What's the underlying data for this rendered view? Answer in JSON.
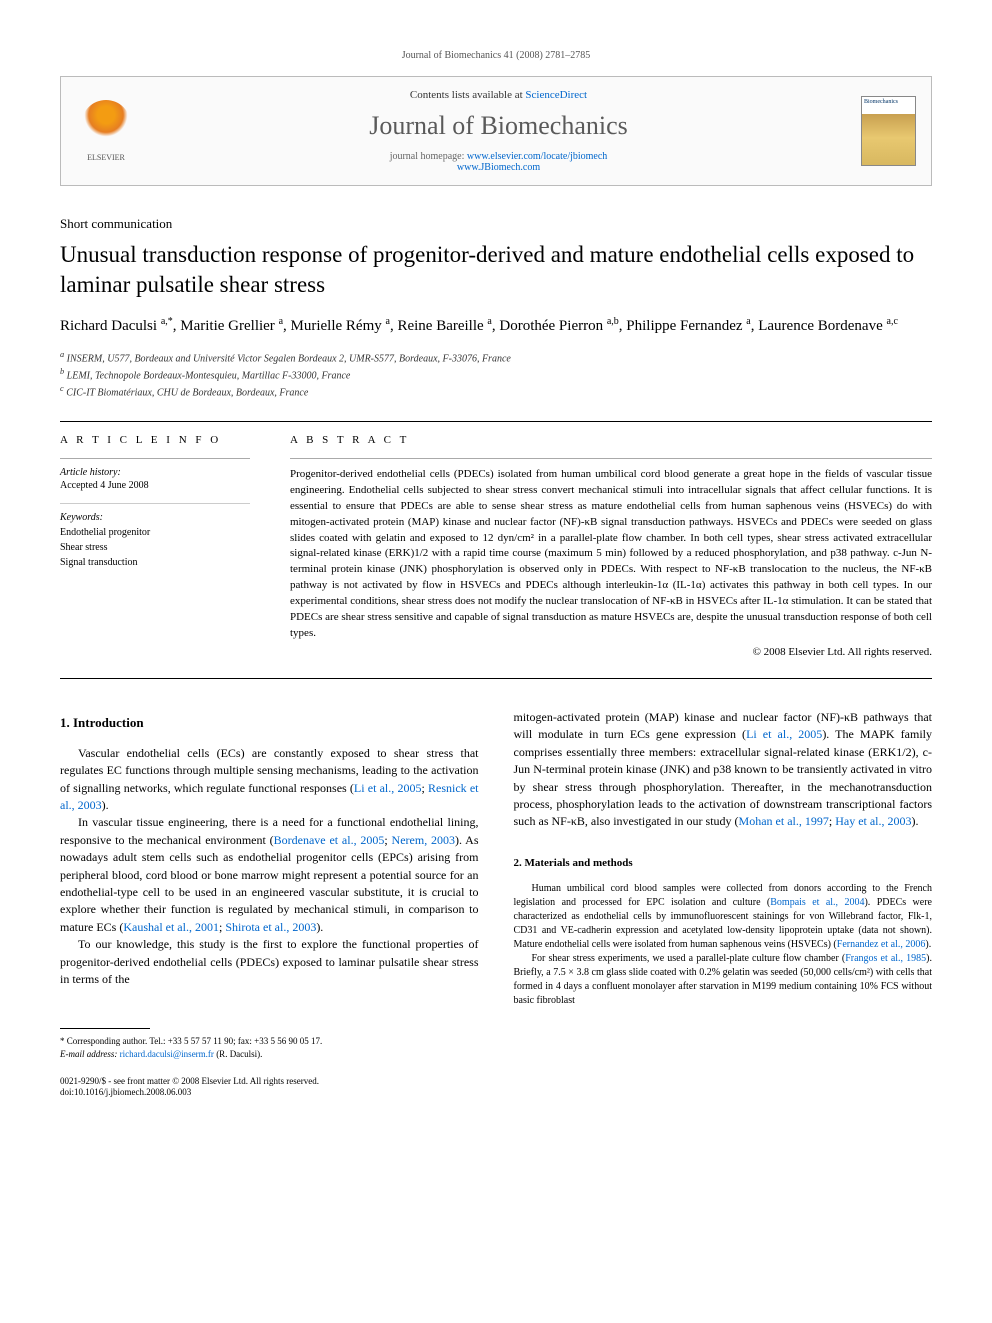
{
  "header": {
    "citation": "Journal of Biomechanics 41 (2008) 2781–2785",
    "contents_prefix": "Contents lists available at ",
    "contents_link": "ScienceDirect",
    "journal_name": "Journal of Biomechanics",
    "homepage_prefix": "journal homepage: ",
    "homepage_link1": "www.elsevier.com/locate/jbiomech",
    "homepage_link2": "www.JBiomech.com",
    "elsevier_label": "ELSEVIER",
    "cover_label": "Biomechanics"
  },
  "article": {
    "type": "Short communication",
    "title": "Unusual transduction response of progenitor-derived and mature endothelial cells exposed to laminar pulsatile shear stress",
    "authors_html": "Richard Daculsi <span class='sup'>a,*</span>, Maritie Grellier <span class='sup'>a</span>, Murielle Rémy <span class='sup'>a</span>, Reine Bareille <span class='sup'>a</span>, Dorothée Pierron <span class='sup'>a,b</span>, Philippe Fernandez <span class='sup'>a</span>, Laurence Bordenave <span class='sup'>a,c</span>",
    "affiliations": [
      "a INSERM, U577, Bordeaux and Université Victor Segalen Bordeaux 2, UMR-S577, Bordeaux, F-33076, France",
      "b LEMI, Technopole Bordeaux-Montesquieu, Martillac F-33000, France",
      "c CIC-IT Biomatériaux, CHU de Bordeaux, Bordeaux, France"
    ]
  },
  "info": {
    "heading": "A R T I C L E   I N F O",
    "history_label": "Article history:",
    "history_text": "Accepted 4 June 2008",
    "keywords_label": "Keywords:",
    "keywords": [
      "Endothelial progenitor",
      "Shear stress",
      "Signal transduction"
    ]
  },
  "abstract": {
    "heading": "A B S T R A C T",
    "text": "Progenitor-derived endothelial cells (PDECs) isolated from human umbilical cord blood generate a great hope in the fields of vascular tissue engineering. Endothelial cells subjected to shear stress convert mechanical stimuli into intracellular signals that affect cellular functions. It is essential to ensure that PDECs are able to sense shear stress as mature endothelial cells from human saphenous veins (HSVECs) do with mitogen-activated protein (MAP) kinase and nuclear factor (NF)-κB signal transduction pathways. HSVECs and PDECs were seeded on glass slides coated with gelatin and exposed to 12 dyn/cm² in a parallel-plate flow chamber. In both cell types, shear stress activated extracellular signal-related kinase (ERK)1/2 with a rapid time course (maximum 5 min) followed by a reduced phosphorylation, and p38 pathway. c-Jun N-terminal protein kinase (JNK) phosphorylation is observed only in PDECs. With respect to NF-κB translocation to the nucleus, the NF-κB pathway is not activated by flow in HSVECs and PDECs although interleukin-1α (IL-1α) activates this pathway in both cell types. In our experimental conditions, shear stress does not modify the nuclear translocation of NF-κB in HSVECs after IL-1α stimulation. It can be stated that PDECs are shear stress sensitive and capable of signal transduction as mature HSVECs are, despite the unusual transduction response of both cell types.",
    "copyright": "© 2008 Elsevier Ltd. All rights reserved."
  },
  "body": {
    "intro_heading": "1.  Introduction",
    "intro_p1": "Vascular endothelial cells (ECs) are constantly exposed to shear stress that regulates EC functions through multiple sensing mechanisms, leading to the activation of signalling networks, which regulate functional responses (",
    "intro_p1_ref1": "Li et al., 2005",
    "intro_p1_mid": "; ",
    "intro_p1_ref2": "Resnick et al., 2003",
    "intro_p1_end": ").",
    "intro_p2_a": "In vascular tissue engineering, there is a need for a functional endothelial lining, responsive to the mechanical environment (",
    "intro_p2_ref1": "Bordenave et al., 2005",
    "intro_p2_b": "; ",
    "intro_p2_ref2": "Nerem, 2003",
    "intro_p2_c": "). As nowadays adult stem cells such as endothelial progenitor cells (EPCs) arising from peripheral blood, cord blood or bone marrow might represent a potential source for an endothelial-type cell to be used in an engineered vascular substitute, it is crucial to explore whether their function is regulated by mechanical stimuli, in comparison to mature ECs (",
    "intro_p2_ref3": "Kaushal et al., 2001",
    "intro_p2_d": "; ",
    "intro_p2_ref4": "Shirota et al., 2003",
    "intro_p2_e": ").",
    "intro_p3": "To our knowledge, this study is the first to explore the functional properties of progenitor-derived endothelial cells (PDECs) exposed to laminar pulsatile shear stress in terms of the",
    "col2_p1_a": "mitogen-activated protein (MAP) kinase and nuclear factor (NF)-κB pathways that will modulate in turn ECs gene expression (",
    "col2_p1_ref1": "Li et al., 2005",
    "col2_p1_b": "). The MAPK family comprises essentially three members: extracellular signal-related kinase (ERK1/2), c-Jun N-terminal protein kinase (JNK) and p38 known to be transiently activated in vitro by shear stress through phosphorylation. Thereafter, in the mechanotransduction process, phosphorylation leads to the activation of downstream transcriptional factors such as NF-κB, also investigated in our study (",
    "col2_p1_ref2": "Mohan et al., 1997",
    "col2_p1_c": "; ",
    "col2_p1_ref3": "Hay et al., 2003",
    "col2_p1_d": ").",
    "methods_heading": "2.  Materials and methods",
    "methods_p1_a": "Human umbilical cord blood samples were collected from donors according to the French legislation and processed for EPC isolation and culture (",
    "methods_p1_ref1": "Bompais et al., 2004",
    "methods_p1_b": "). PDECs were characterized as endothelial cells by immunofluorescent stainings for von Willebrand factor, Flk-1, CD31 and VE-cadherin expression and acetylated low-density lipoprotein uptake (data not shown). Mature endothelial cells were isolated from human saphenous veins (HSVECs) (",
    "methods_p1_ref2": "Fernandez et al., 2006",
    "methods_p1_c": ").",
    "methods_p2_a": "For shear stress experiments, we used a parallel-plate culture flow chamber (",
    "methods_p2_ref1": "Frangos et al., 1985",
    "methods_p2_b": "). Briefly, a 7.5 × 3.8 cm glass slide coated with 0.2% gelatin was seeded (50,000 cells/cm²) with cells that formed in 4 days a confluent monolayer after starvation in M199 medium containing 10% FCS without basic fibroblast"
  },
  "footnote": {
    "corr": "* Corresponding author. Tel.: +33 5 57 57 11 90; fax: +33 5 56 90 05 17.",
    "email_label": "E-mail address: ",
    "email": "richard.daculsi@inserm.fr",
    "email_suffix": " (R. Daculsi)."
  },
  "footer": {
    "line1": "0021-9290/$ - see front matter © 2008 Elsevier Ltd. All rights reserved.",
    "line2": "doi:10.1016/j.jbiomech.2008.06.003"
  },
  "colors": {
    "link": "#0066cc",
    "text": "#000000",
    "gray": "#5a5a5a"
  }
}
